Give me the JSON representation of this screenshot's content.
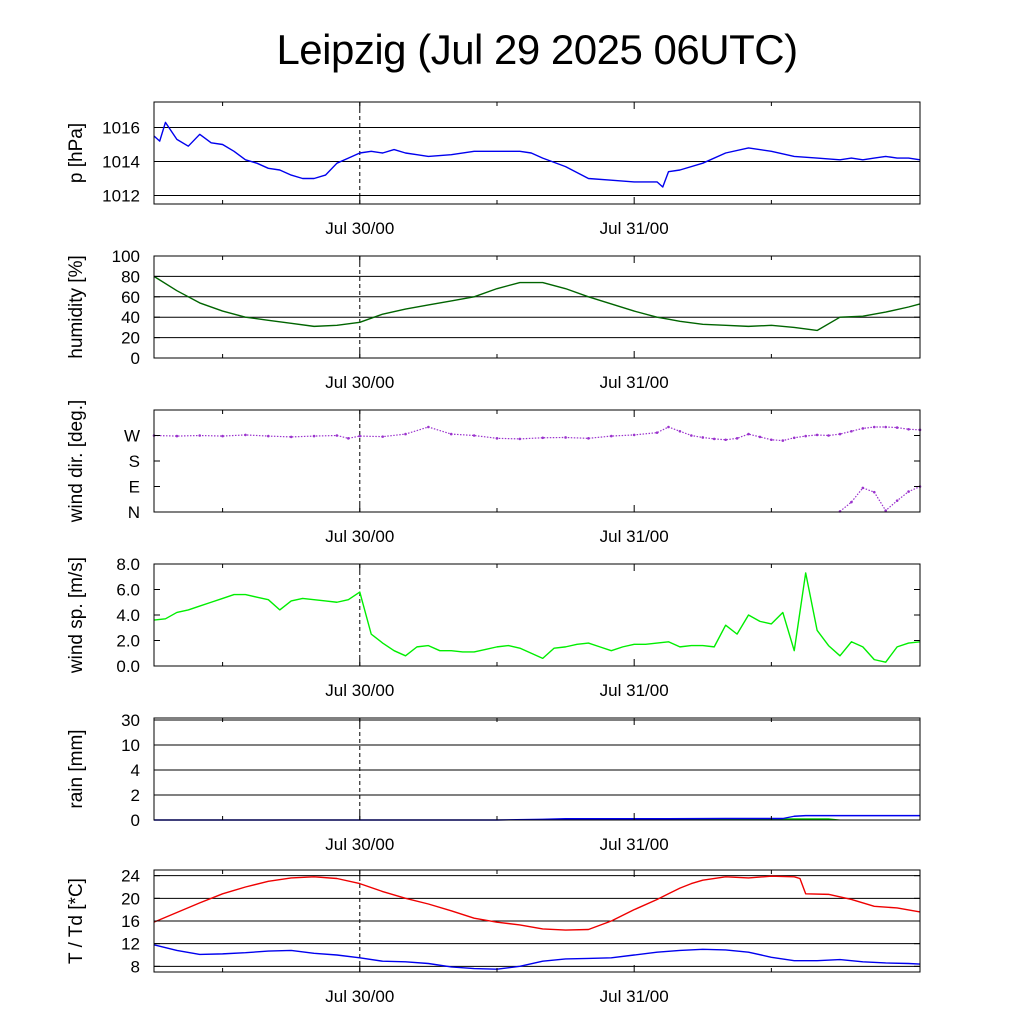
{
  "title": "Leipzig (Jul 29 2025 06UTC)",
  "time_axis": {
    "ticks": [
      "Jul 30/00",
      "Jul 31/00"
    ]
  },
  "chart_data": [
    {
      "type": "line",
      "ylabel": "p [hPa]",
      "ylim": [
        1011.5,
        1017.5
      ],
      "yticks": [
        1012,
        1014,
        1016
      ],
      "ytick_labels": [
        "1012",
        "1014",
        "1016"
      ],
      "grid": true,
      "series": [
        {
          "color": "#0000ee",
          "x": [
            0,
            0.5,
            1,
            2,
            3,
            4,
            5,
            6,
            7,
            8,
            9,
            10,
            11,
            12,
            13,
            14,
            15,
            16,
            17,
            18,
            19,
            20,
            21,
            22,
            23,
            24,
            26,
            28,
            30,
            32,
            33,
            34,
            36,
            38,
            40,
            42,
            43,
            44,
            44.5,
            45,
            46,
            48,
            50,
            52,
            54,
            56,
            58,
            60,
            61,
            62,
            63,
            64,
            65,
            66,
            67
          ],
          "y": [
            1015.5,
            1015.2,
            1016.3,
            1015.3,
            1014.9,
            1015.6,
            1015.1,
            1015.0,
            1014.6,
            1014.1,
            1013.9,
            1013.6,
            1013.5,
            1013.2,
            1013.0,
            1013.0,
            1013.2,
            1013.9,
            1014.2,
            1014.5,
            1014.6,
            1014.5,
            1014.7,
            1014.5,
            1014.4,
            1014.3,
            1014.4,
            1014.6,
            1014.6,
            1014.6,
            1014.5,
            1014.2,
            1013.7,
            1013.0,
            1012.9,
            1012.8,
            1012.8,
            1012.8,
            1012.5,
            1013.4,
            1013.5,
            1013.9,
            1014.5,
            1014.8,
            1014.6,
            1014.3,
            1014.2,
            1014.1,
            1014.2,
            1014.1,
            1014.2,
            1014.3,
            1014.2,
            1014.2,
            1014.1
          ]
        }
      ]
    },
    {
      "type": "line",
      "ylabel": "humidity [%]",
      "ylim": [
        0,
        100
      ],
      "yticks": [
        0,
        20,
        40,
        60,
        80,
        100
      ],
      "ytick_labels": [
        "0",
        "20",
        "40",
        "60",
        "80",
        "100"
      ],
      "grid": true,
      "series": [
        {
          "color": "#006400",
          "x": [
            0,
            2,
            4,
            6,
            8,
            10,
            12,
            14,
            16,
            18,
            20,
            22,
            24,
            26,
            28,
            30,
            32,
            34,
            36,
            38,
            40,
            42,
            44,
            44.5,
            45,
            46,
            48,
            50,
            52,
            54,
            56,
            58,
            60,
            62,
            64,
            66,
            67
          ],
          "y": [
            80,
            66,
            54,
            46,
            40,
            37,
            34,
            31,
            32,
            35,
            43,
            48,
            52,
            56,
            60,
            68,
            74,
            74,
            68,
            60,
            53,
            46,
            40,
            39,
            38,
            36,
            33,
            32,
            31,
            32,
            30,
            27,
            40,
            41,
            45,
            50,
            53
          ]
        }
      ]
    },
    {
      "type": "scatter",
      "ylabel": "wind dir. [deg.]",
      "ylim": [
        0,
        360
      ],
      "yticks": [
        0,
        90,
        180,
        270
      ],
      "ytick_labels": [
        "N",
        "E",
        "S",
        "W"
      ],
      "grid": false,
      "series": [
        {
          "color": "#9a32cd",
          "x": [
            0,
            2,
            4,
            6,
            8,
            10,
            12,
            14,
            16,
            17,
            18,
            20,
            22,
            24,
            26,
            28,
            30,
            32,
            34,
            36,
            38,
            40,
            42,
            44,
            45,
            46,
            47,
            48,
            49,
            50,
            51,
            52,
            53,
            54,
            55,
            56,
            57,
            58,
            59,
            60,
            61,
            62,
            63,
            64,
            65,
            66,
            67
          ],
          "y": [
            270,
            268,
            270,
            268,
            272,
            268,
            265,
            268,
            270,
            260,
            268,
            266,
            275,
            300,
            275,
            270,
            260,
            258,
            262,
            263,
            260,
            268,
            272,
            280,
            300,
            285,
            270,
            263,
            258,
            255,
            260,
            275,
            265,
            255,
            252,
            262,
            268,
            272,
            270,
            275,
            285,
            295,
            300,
            300,
            298,
            292,
            290
          ]
        },
        {
          "color": "#9a32cd",
          "x": [
            60,
            61,
            62,
            63,
            64,
            65,
            66,
            67
          ],
          "y": [
            2,
            35,
            85,
            70,
            5,
            40,
            72,
            90
          ]
        }
      ]
    },
    {
      "type": "line",
      "ylabel": "wind sp. [m/s]",
      "ylim": [
        0,
        8
      ],
      "yticks": [
        0,
        2,
        4,
        6,
        8
      ],
      "ytick_labels": [
        "0.0",
        "2.0",
        "4.0",
        "6.0",
        "8.0"
      ],
      "grid": false,
      "series": [
        {
          "color": "#00ee00",
          "x": [
            0,
            1,
            2,
            3,
            4,
            5,
            6,
            7,
            8,
            9,
            10,
            11,
            12,
            13,
            14,
            15,
            16,
            17,
            18,
            19,
            20,
            21,
            22,
            23,
            24,
            25,
            26,
            27,
            28,
            29,
            30,
            31,
            32,
            33,
            34,
            35,
            36,
            37,
            38,
            39,
            40,
            41,
            42,
            43,
            44,
            45,
            46,
            47,
            48,
            49,
            50,
            51,
            52,
            53,
            54,
            55,
            56,
            57,
            58,
            59,
            60,
            61,
            62,
            63,
            64,
            65,
            66,
            67
          ],
          "y": [
            3.6,
            3.7,
            4.2,
            4.4,
            4.7,
            5.0,
            5.3,
            5.6,
            5.6,
            5.4,
            5.2,
            4.4,
            5.1,
            5.3,
            5.2,
            5.1,
            5.0,
            5.2,
            5.8,
            2.5,
            1.8,
            1.2,
            0.8,
            1.5,
            1.6,
            1.2,
            1.2,
            1.1,
            1.1,
            1.3,
            1.5,
            1.6,
            1.4,
            1.0,
            0.6,
            1.4,
            1.5,
            1.7,
            1.8,
            1.5,
            1.2,
            1.5,
            1.7,
            1.7,
            1.8,
            1.9,
            1.5,
            1.6,
            1.6,
            1.5,
            3.2,
            2.5,
            4.0,
            3.5,
            3.3,
            4.2,
            1.2,
            7.3,
            2.8,
            1.6,
            0.8,
            1.9,
            1.5,
            0.5,
            0.3,
            1.5,
            1.8,
            1.9
          ]
        }
      ]
    },
    {
      "type": "area",
      "ylabel": "rain [mm]",
      "ylim": [
        0,
        30
      ],
      "yticks": [
        0,
        2,
        4,
        10,
        30
      ],
      "ytick_labels": [
        "0",
        "2",
        "4",
        "10",
        "30"
      ],
      "grid": true,
      "series": [
        {
          "color": "#00cc00",
          "x": [
            0,
            35,
            36,
            46,
            50,
            55,
            56,
            59,
            60,
            67
          ],
          "y": [
            0,
            0,
            0.05,
            0.08,
            0.1,
            0.1,
            0.1,
            0.1,
            0,
            0
          ]
        },
        {
          "color": "#0000ee",
          "x": [
            0,
            30,
            34,
            36,
            40,
            45,
            50,
            55,
            56,
            57,
            60,
            67
          ],
          "y": [
            0,
            0,
            0.05,
            0.1,
            0.1,
            0.1,
            0.12,
            0.12,
            0.3,
            0.35,
            0.35,
            0.35
          ]
        }
      ]
    },
    {
      "type": "line",
      "ylabel": "T / Td [*C]",
      "ylim": [
        7,
        25
      ],
      "yticks": [
        8,
        12,
        16,
        20,
        24
      ],
      "ytick_labels": [
        "8",
        "12",
        "16",
        "20",
        "24"
      ],
      "grid": true,
      "series": [
        {
          "color": "#ee0000",
          "x": [
            0,
            2,
            4,
            6,
            8,
            10,
            12,
            14,
            16,
            18,
            20,
            22,
            24,
            26,
            28,
            30,
            32,
            34,
            36,
            38,
            40,
            42,
            44,
            45,
            46,
            47,
            48,
            50,
            52,
            54,
            56,
            56.5,
            57,
            59,
            61,
            63,
            65,
            67
          ],
          "y": [
            15.8,
            17.5,
            19.2,
            20.8,
            22.0,
            23.0,
            23.6,
            23.8,
            23.5,
            22.6,
            21.2,
            20.0,
            19.0,
            17.8,
            16.5,
            15.8,
            15.3,
            14.6,
            14.4,
            14.5,
            16.0,
            18.0,
            19.8,
            20.8,
            21.8,
            22.6,
            23.2,
            23.8,
            23.6,
            23.9,
            23.8,
            23.5,
            20.8,
            20.7,
            19.8,
            18.6,
            18.3,
            17.6
          ]
        },
        {
          "color": "#0000ee",
          "x": [
            0,
            2,
            4,
            6,
            8,
            10,
            12,
            14,
            16,
            18,
            20,
            22,
            24,
            26,
            28,
            30,
            32,
            34,
            36,
            38,
            40,
            42,
            44,
            46,
            48,
            50,
            52,
            54,
            56,
            58,
            60,
            62,
            64,
            66,
            67
          ],
          "y": [
            11.8,
            10.8,
            10.1,
            10.2,
            10.4,
            10.7,
            10.8,
            10.3,
            10.0,
            9.5,
            8.9,
            8.8,
            8.5,
            7.9,
            7.6,
            7.5,
            8.0,
            8.9,
            9.3,
            9.4,
            9.5,
            10.0,
            10.5,
            10.8,
            11.0,
            10.9,
            10.5,
            9.6,
            9.0,
            9.0,
            9.2,
            8.8,
            8.6,
            8.5,
            8.4
          ]
        }
      ]
    }
  ]
}
